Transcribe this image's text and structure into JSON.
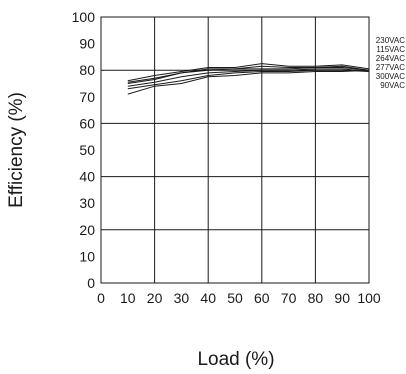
{
  "chart_data": {
    "type": "line",
    "title": "",
    "xlabel": "Load (%)",
    "ylabel": "Efficiency (%)",
    "xlim": [
      0,
      100
    ],
    "ylim": [
      0,
      100
    ],
    "xticks": [
      0,
      10,
      20,
      30,
      40,
      50,
      60,
      70,
      80,
      90,
      100
    ],
    "yticks": [
      0,
      10,
      20,
      30,
      40,
      50,
      60,
      70,
      80,
      90,
      100
    ],
    "grid": true,
    "legend_position": "right",
    "line_color": "#1a1a1a",
    "x": [
      10,
      20,
      30,
      40,
      50,
      60,
      70,
      80,
      90,
      100
    ],
    "series": [
      {
        "name": "230VAC",
        "values": [
          76,
          78,
          79.5,
          81,
          81,
          82.5,
          81.5,
          81.5,
          82,
          80.5
        ]
      },
      {
        "name": "115VAC",
        "values": [
          75.5,
          77,
          79,
          80.5,
          80.5,
          81.5,
          81,
          81,
          81.5,
          80
        ]
      },
      {
        "name": "264VAC",
        "values": [
          75,
          76.5,
          79,
          80,
          80.5,
          80.5,
          80.5,
          81,
          81,
          80
        ]
      },
      {
        "name": "277VAC",
        "values": [
          74,
          75.5,
          77.5,
          79,
          79.5,
          80,
          80,
          80.5,
          80.5,
          79.5
        ]
      },
      {
        "name": "300VAC",
        "values": [
          73,
          74.5,
          76,
          78,
          79,
          79.5,
          79.5,
          80,
          80,
          79.5
        ]
      },
      {
        "name": "90VAC",
        "values": [
          71,
          74,
          75,
          77.5,
          78,
          79,
          79,
          79.5,
          79.5,
          80
        ]
      }
    ]
  }
}
